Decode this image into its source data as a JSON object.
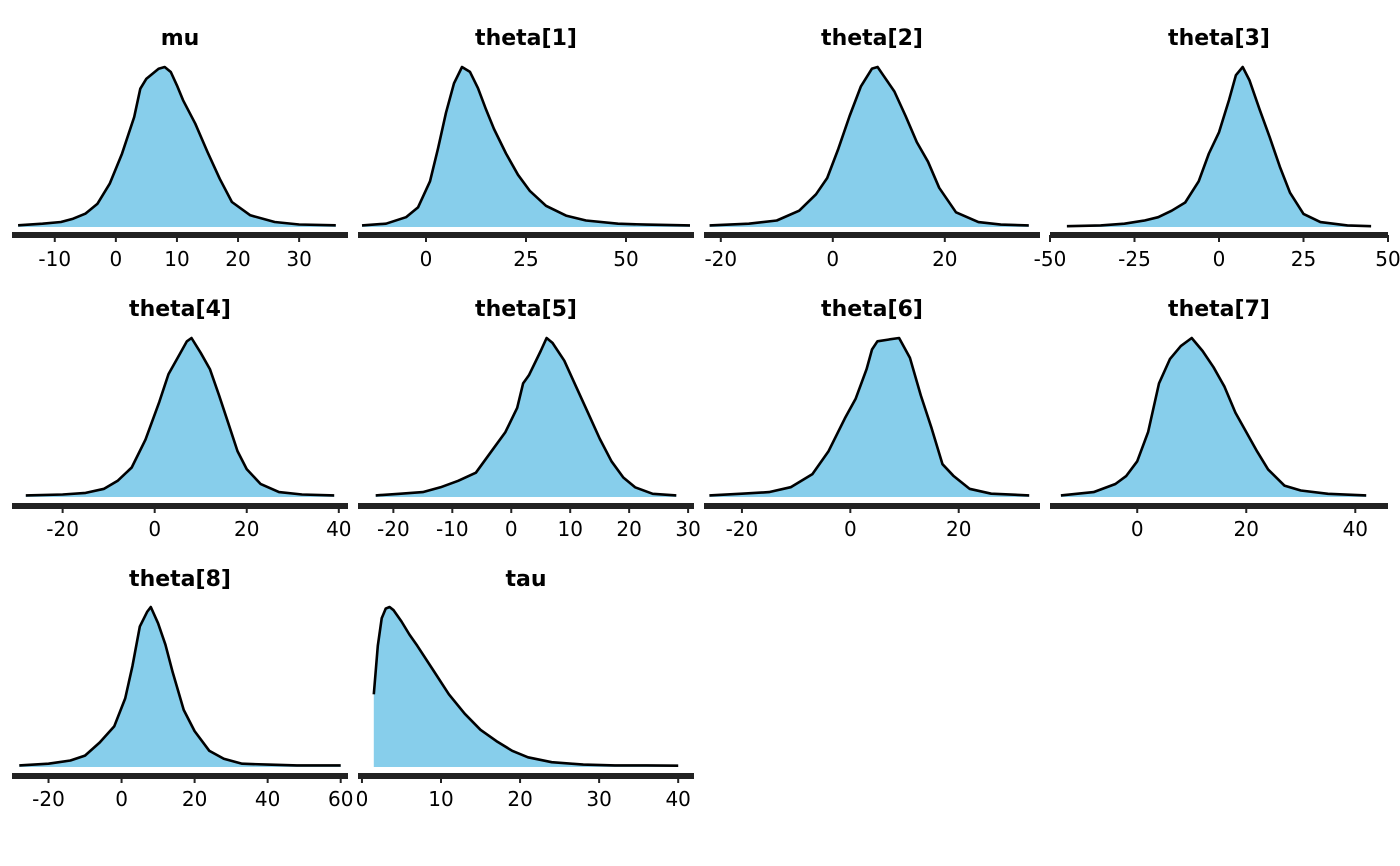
{
  "chart_data": [
    {
      "type": "area",
      "title": "mu",
      "xlim": [
        -17,
        38
      ],
      "ticks": [
        -10,
        0,
        10,
        20,
        30
      ],
      "tick_labels": [
        "-10",
        "0",
        "10",
        "20",
        "30"
      ],
      "x": [
        -16,
        -12,
        -9,
        -7,
        -5,
        -3,
        -1,
        1,
        3,
        4,
        5,
        6,
        7,
        8,
        9,
        10,
        11,
        13,
        15,
        17,
        19,
        22,
        26,
        30,
        36
      ],
      "y": [
        0.01,
        0.02,
        0.03,
        0.05,
        0.08,
        0.14,
        0.26,
        0.44,
        0.66,
        0.83,
        0.89,
        0.92,
        0.95,
        0.96,
        0.93,
        0.85,
        0.76,
        0.62,
        0.45,
        0.29,
        0.15,
        0.07,
        0.03,
        0.015,
        0.01
      ]
    },
    {
      "type": "area",
      "title": "theta[1]",
      "xlim": [
        -17,
        67
      ],
      "ticks": [
        0,
        25,
        50
      ],
      "tick_labels": [
        "0",
        "25",
        "50"
      ],
      "x": [
        -16,
        -10,
        -5,
        -2,
        1,
        3,
        5,
        7,
        9,
        11,
        13,
        15,
        17,
        20,
        23,
        26,
        30,
        35,
        40,
        48,
        55,
        66
      ],
      "y": [
        0.01,
        0.02,
        0.06,
        0.12,
        0.28,
        0.48,
        0.7,
        0.88,
        0.98,
        0.95,
        0.85,
        0.72,
        0.6,
        0.45,
        0.32,
        0.22,
        0.13,
        0.07,
        0.04,
        0.02,
        0.015,
        0.01
      ]
    },
    {
      "type": "area",
      "title": "theta[2]",
      "xlim": [
        -23,
        37
      ],
      "ticks": [
        -20,
        0,
        20
      ],
      "tick_labels": [
        "-20",
        "0",
        "20"
      ],
      "x": [
        -22,
        -15,
        -10,
        -6,
        -3,
        -1,
        1,
        3,
        5,
        7,
        8,
        9,
        11,
        13,
        15,
        17,
        19,
        22,
        26,
        30,
        35
      ],
      "y": [
        0.01,
        0.02,
        0.04,
        0.1,
        0.2,
        0.3,
        0.48,
        0.68,
        0.86,
        0.97,
        0.98,
        0.93,
        0.83,
        0.68,
        0.52,
        0.4,
        0.24,
        0.09,
        0.03,
        0.015,
        0.01
      ]
    },
    {
      "type": "area",
      "title": "theta[3]",
      "xlim": [
        -50,
        50
      ],
      "ticks": [
        -50,
        -25,
        0,
        25,
        50
      ],
      "tick_labels": [
        "-50",
        "-25",
        "0",
        "25",
        "50"
      ],
      "x": [
        -45,
        -35,
        -28,
        -22,
        -18,
        -14,
        -10,
        -6,
        -3,
        0,
        3,
        5,
        7,
        9,
        12,
        15,
        18,
        21,
        25,
        30,
        38,
        45
      ],
      "y": [
        0.005,
        0.01,
        0.02,
        0.04,
        0.06,
        0.1,
        0.15,
        0.28,
        0.45,
        0.58,
        0.78,
        0.93,
        0.98,
        0.9,
        0.72,
        0.55,
        0.37,
        0.21,
        0.08,
        0.03,
        0.01,
        0.005
      ]
    },
    {
      "type": "area",
      "title": "theta[4]",
      "xlim": [
        -31,
        42
      ],
      "ticks": [
        -20,
        0,
        20,
        40
      ],
      "tick_labels": [
        "-20",
        "0",
        "20",
        "40"
      ],
      "x": [
        -28,
        -20,
        -15,
        -11,
        -8,
        -5,
        -2,
        1,
        3,
        5,
        7,
        8,
        10,
        12,
        14,
        16,
        18,
        20,
        23,
        27,
        32,
        39
      ],
      "y": [
        0.01,
        0.015,
        0.025,
        0.05,
        0.1,
        0.18,
        0.35,
        0.58,
        0.75,
        0.85,
        0.95,
        0.97,
        0.88,
        0.78,
        0.62,
        0.45,
        0.28,
        0.17,
        0.08,
        0.03,
        0.015,
        0.01
      ]
    },
    {
      "type": "area",
      "title": "theta[5]",
      "xlim": [
        -26,
        31
      ],
      "ticks": [
        -20,
        -10,
        0,
        10,
        20,
        30
      ],
      "tick_labels": [
        "-20",
        "-10",
        "0",
        "10",
        "20",
        "30"
      ],
      "x": [
        -23,
        -19,
        -15,
        -12,
        -9,
        -6,
        -3,
        -1,
        1,
        2,
        3,
        5,
        6,
        7,
        9,
        11,
        13,
        15,
        17,
        19,
        21,
        24,
        28
      ],
      "y": [
        0.01,
        0.02,
        0.03,
        0.06,
        0.1,
        0.15,
        0.3,
        0.4,
        0.55,
        0.7,
        0.75,
        0.9,
        0.98,
        0.95,
        0.84,
        0.68,
        0.52,
        0.36,
        0.22,
        0.12,
        0.06,
        0.02,
        0.01
      ]
    },
    {
      "type": "area",
      "title": "theta[6]",
      "xlim": [
        -27,
        35
      ],
      "ticks": [
        -20,
        0,
        20
      ],
      "tick_labels": [
        "-20",
        "0",
        "20"
      ],
      "x": [
        -26,
        -20,
        -15,
        -11,
        -7,
        -4,
        -1,
        1,
        3,
        4,
        5,
        7,
        9,
        11,
        13,
        15,
        17,
        19,
        22,
        26,
        33
      ],
      "y": [
        0.01,
        0.02,
        0.03,
        0.06,
        0.14,
        0.28,
        0.48,
        0.6,
        0.78,
        0.9,
        0.95,
        0.96,
        0.97,
        0.85,
        0.62,
        0.42,
        0.2,
        0.13,
        0.05,
        0.02,
        0.01
      ]
    },
    {
      "type": "area",
      "title": "theta[7]",
      "xlim": [
        -16,
        46
      ],
      "ticks": [
        0,
        20,
        40
      ],
      "tick_labels": [
        "0",
        "20",
        "40"
      ],
      "x": [
        -14,
        -8,
        -4,
        -2,
        0,
        2,
        4,
        6,
        8,
        10,
        12,
        14,
        16,
        18,
        20,
        22,
        24,
        27,
        30,
        35,
        42
      ],
      "y": [
        0.01,
        0.03,
        0.08,
        0.13,
        0.22,
        0.4,
        0.7,
        0.85,
        0.93,
        0.98,
        0.9,
        0.8,
        0.68,
        0.52,
        0.4,
        0.28,
        0.17,
        0.07,
        0.04,
        0.02,
        0.01
      ]
    },
    {
      "type": "area",
      "title": "theta[8]",
      "xlim": [
        -30,
        62
      ],
      "ticks": [
        -20,
        0,
        20,
        40,
        60
      ],
      "tick_labels": [
        "-20",
        "0",
        "20",
        "40",
        "60"
      ],
      "x": [
        -28,
        -20,
        -14,
        -10,
        -6,
        -2,
        1,
        3,
        5,
        7,
        8,
        10,
        12,
        14,
        17,
        20,
        24,
        28,
        33,
        40,
        48,
        60
      ],
      "y": [
        0.01,
        0.02,
        0.04,
        0.07,
        0.15,
        0.25,
        0.42,
        0.62,
        0.86,
        0.95,
        0.98,
        0.88,
        0.75,
        0.58,
        0.35,
        0.22,
        0.1,
        0.05,
        0.02,
        0.015,
        0.01,
        0.01
      ]
    },
    {
      "type": "area",
      "title": "tau",
      "xlim": [
        -0.5,
        42
      ],
      "ticks": [
        0,
        10,
        20,
        30,
        40
      ],
      "tick_labels": [
        "0",
        "10",
        "20",
        "30",
        "40"
      ],
      "x": [
        1.5,
        2,
        2.5,
        3,
        3.5,
        4,
        5,
        6,
        7,
        9,
        11,
        13,
        15,
        17,
        19,
        21,
        24,
        28,
        32,
        36,
        40
      ],
      "y": [
        0.45,
        0.75,
        0.92,
        0.98,
        0.99,
        0.97,
        0.9,
        0.82,
        0.75,
        0.6,
        0.45,
        0.33,
        0.23,
        0.16,
        0.1,
        0.06,
        0.03,
        0.015,
        0.01,
        0.01,
        0.008
      ]
    }
  ]
}
